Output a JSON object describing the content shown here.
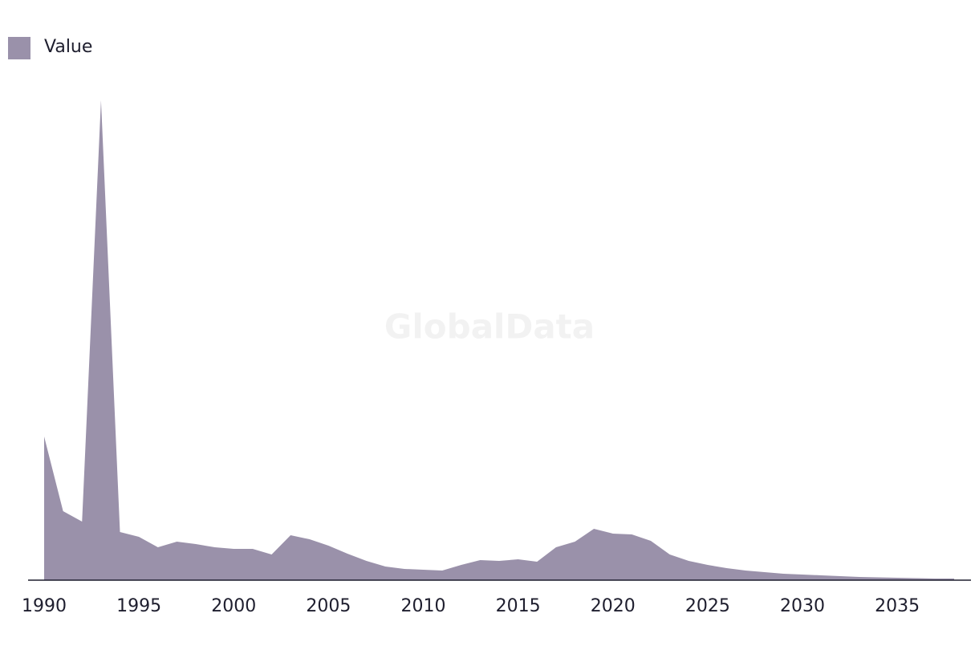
{
  "chart_data": {
    "type": "area",
    "watermark": "GlobalData",
    "x": [
      1990,
      1991,
      1992,
      1993,
      1994,
      1995,
      1996,
      1997,
      1998,
      1999,
      2000,
      2001,
      2002,
      2003,
      2004,
      2005,
      2006,
      2007,
      2008,
      2009,
      2010,
      2011,
      2012,
      2013,
      2014,
      2015,
      2016,
      2017,
      2018,
      2019,
      2020,
      2021,
      2022,
      2023,
      2024,
      2025,
      2026,
      2027,
      2028,
      2029,
      2030,
      2031,
      2032,
      2033,
      2034,
      2035,
      2036,
      2037,
      2038
    ],
    "series": [
      {
        "name": "Value",
        "color": "#9a91aa",
        "values": [
          179,
          86,
          73,
          598,
          60,
          54,
          41,
          48,
          45,
          41,
          39,
          39,
          32,
          56,
          51,
          43,
          33,
          24,
          17,
          14,
          13,
          12,
          19,
          25,
          24,
          26,
          23,
          41,
          48,
          64,
          58,
          57,
          49,
          32,
          24,
          19,
          15,
          12,
          10,
          8,
          7,
          6,
          5,
          4,
          3.5,
          3,
          2.5,
          2,
          2
        ]
      }
    ],
    "xlim": [
      1990,
      2038
    ],
    "xticks": [
      1990,
      1995,
      2000,
      2005,
      2010,
      2015,
      2020,
      2025,
      2030,
      2035
    ],
    "ylim": [
      0,
      600
    ],
    "legend": "top-left"
  }
}
